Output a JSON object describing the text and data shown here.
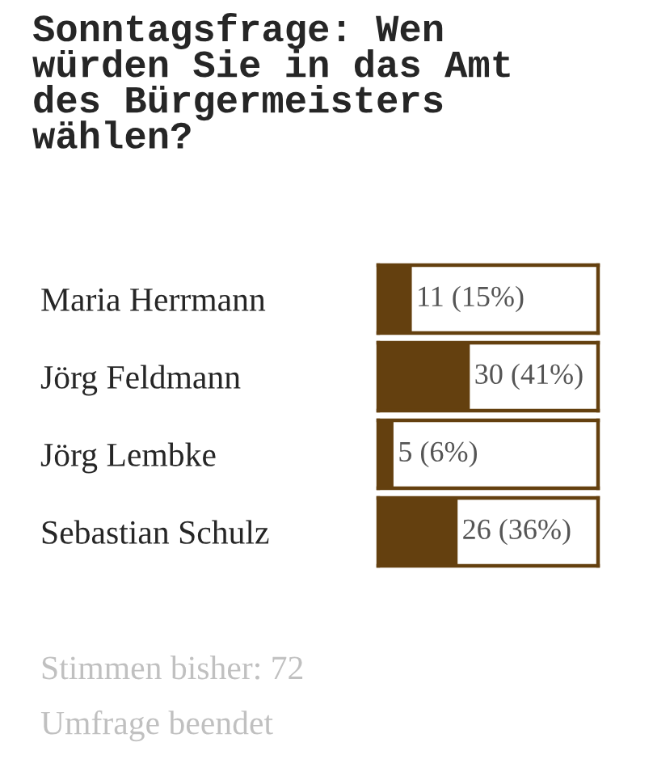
{
  "chart_data": {
    "type": "bar",
    "orientation": "horizontal",
    "title": "Sonntagsfrage: Wen würden Sie in das Amt des Bürgermeisters wählen?",
    "categories": [
      "Maria Herrmann",
      "Jörg Feldmann",
      "Jörg Lembke",
      "Sebastian Schulz"
    ],
    "values": [
      11,
      30,
      5,
      26
    ],
    "value_labels": [
      "11 (15%)",
      "30 (41%)",
      "5 (6%)",
      "26 (36%)"
    ],
    "color": "#64400f",
    "xlim": [
      0,
      72
    ],
    "grid": false,
    "legend": false,
    "tick_labels": "y",
    "annotations": [
      "Stimmen bisher: 72",
      "Umfrage beendet"
    ]
  }
}
